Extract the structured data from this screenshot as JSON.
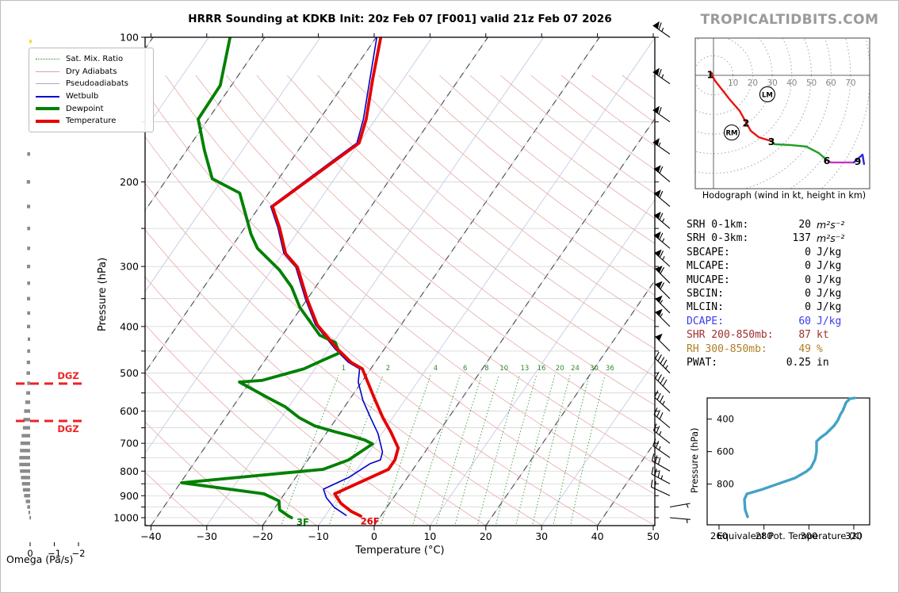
{
  "title": "HRRR Sounding at KDKB Init: 20z Feb 07 [F001] valid 21z Feb 07 2026",
  "logo": "TROPICALTIDBITS.COM",
  "legend": {
    "items": [
      {
        "label": "Sat. Mix. Ratio",
        "key": "mixratio"
      },
      {
        "label": "Dry Adiabats",
        "key": "dryadiabat"
      },
      {
        "label": "Pseudoadiabats",
        "key": "pseudoadiabat"
      },
      {
        "label": "Wetbulb",
        "key": "wetbulb"
      },
      {
        "label": "Dewpoint",
        "key": "dewpoint"
      },
      {
        "label": "Temperature",
        "key": "temperature"
      }
    ]
  },
  "chart_data": {
    "skewt": {
      "type": "line",
      "xlabel": "Temperature (°C)",
      "ylabel": "Pressure (hPa)",
      "x_ticks": [
        -40,
        -30,
        -20,
        -10,
        0,
        10,
        20,
        30,
        40,
        50
      ],
      "p_ticks": [
        100,
        200,
        300,
        400,
        500,
        600,
        700,
        800,
        900,
        1000
      ],
      "xlim": [
        -41,
        50.3
      ],
      "plim": [
        100,
        1040
      ],
      "mixing_ratio_values": [
        1,
        2,
        4,
        6,
        8,
        10,
        13,
        16,
        20,
        24,
        30,
        36
      ],
      "dgz_label": "DGZ",
      "dgz_levels_hpa": [
        526,
        629
      ],
      "surface_labels": [
        {
          "text": "26F",
          "color": "#e60000",
          "x_temp": -3.6,
          "p": 1005
        },
        {
          "text": "3F",
          "color": "#008000",
          "x_temp": -15.5,
          "p": 1010
        }
      ],
      "series": [
        {
          "name": "Temperature",
          "color": "#e60000",
          "points": [
            [
              100,
              -59.2
            ],
            [
              122,
              -55.5
            ],
            [
              148,
              -51.7
            ],
            [
              166,
              -50.0
            ],
            [
              176,
              -51.5
            ],
            [
              225,
              -57.7
            ],
            [
              249,
              -53.8
            ],
            [
              282,
              -49.5
            ],
            [
              301,
              -45.7
            ],
            [
              350,
              -40.1
            ],
            [
              397,
              -35.0
            ],
            [
              445,
              -28.5
            ],
            [
              475,
              -24.3
            ],
            [
              490,
              -21.5
            ],
            [
              563,
              -15.8
            ],
            [
              619,
              -11.8
            ],
            [
              663,
              -8.6
            ],
            [
              716,
              -5.3
            ],
            [
              758,
              -4.4
            ],
            [
              793,
              -4.4
            ],
            [
              892,
              -11.0
            ],
            [
              934,
              -8.7
            ],
            [
              970,
              -5.9
            ],
            [
              992,
              -3.6
            ]
          ]
        },
        {
          "name": "Dewpoint",
          "color": "#008000",
          "points": [
            [
              100,
              -86.2
            ],
            [
              126,
              -82.0
            ],
            [
              148,
              -81.8
            ],
            [
              172,
              -76.8
            ],
            [
              197,
              -71.9
            ],
            [
              211,
              -65.2
            ],
            [
              257,
              -58.1
            ],
            [
              275,
              -55.2
            ],
            [
              305,
              -48.6
            ],
            [
              331,
              -44.3
            ],
            [
              365,
              -40.3
            ],
            [
              417,
              -33.3
            ],
            [
              432,
              -29.6
            ],
            [
              454,
              -27.6
            ],
            [
              468,
              -29.4
            ],
            [
              490,
              -32.0
            ],
            [
              518,
              -38.1
            ],
            [
              522,
              -41.9
            ],
            [
              563,
              -34.8
            ],
            [
              588,
              -30.6
            ],
            [
              619,
              -26.8
            ],
            [
              644,
              -23.0
            ],
            [
              663,
              -18.5
            ],
            [
              676,
              -15.2
            ],
            [
              689,
              -12.3
            ],
            [
              702,
              -10.4
            ],
            [
              758,
              -12.7
            ],
            [
              793,
              -16.1
            ],
            [
              846,
              -39.8
            ],
            [
              892,
              -23.7
            ],
            [
              923,
              -20.1
            ],
            [
              963,
              -18.9
            ],
            [
              989,
              -16.8
            ],
            [
              1000,
              -15.8
            ]
          ]
        },
        {
          "name": "Wetbulb",
          "color": "#0000cd",
          "points": [
            [
              100,
              -59.9
            ],
            [
              122,
              -56.0
            ],
            [
              148,
              -52.2
            ],
            [
              166,
              -50.4
            ],
            [
              176,
              -51.9
            ],
            [
              225,
              -58.0
            ],
            [
              249,
              -54.1
            ],
            [
              282,
              -49.8
            ],
            [
              301,
              -46.0
            ],
            [
              350,
              -40.4
            ],
            [
              397,
              -35.3
            ],
            [
              445,
              -28.9
            ],
            [
              475,
              -24.8
            ],
            [
              490,
              -22.0
            ],
            [
              522,
              -20.6
            ],
            [
              570,
              -17.5
            ],
            [
              619,
              -14.0
            ],
            [
              668,
              -10.7
            ],
            [
              730,
              -7.6
            ],
            [
              758,
              -7.0
            ],
            [
              772,
              -8.4
            ],
            [
              824,
              -10.5
            ],
            [
              872,
              -13.6
            ],
            [
              909,
              -12.0
            ],
            [
              952,
              -9.4
            ],
            [
              989,
              -6.3
            ]
          ]
        }
      ]
    },
    "wind_barbs": {
      "units": "kt",
      "levels": [
        [
          100,
          65,
          305
        ],
        [
          125,
          65,
          305
        ],
        [
          150,
          60,
          305
        ],
        [
          175,
          55,
          305
        ],
        [
          200,
          60,
          310
        ],
        [
          225,
          60,
          310
        ],
        [
          250,
          65,
          310
        ],
        [
          275,
          65,
          310
        ],
        [
          300,
          65,
          312
        ],
        [
          325,
          60,
          315
        ],
        [
          350,
          60,
          315
        ],
        [
          375,
          55,
          315
        ],
        [
          400,
          55,
          315
        ],
        [
          450,
          50,
          315
        ],
        [
          500,
          45,
          315
        ],
        [
          550,
          40,
          315
        ],
        [
          600,
          35,
          312
        ],
        [
          650,
          30,
          310
        ],
        [
          700,
          25,
          308
        ],
        [
          750,
          25,
          305
        ],
        [
          800,
          30,
          300
        ],
        [
          850,
          35,
          298
        ],
        [
          900,
          20,
          295
        ],
        [
          950,
          5,
          80
        ],
        [
          1000,
          5,
          95
        ]
      ]
    },
    "omega": {
      "type": "bar",
      "xlabel": "Omega (Pa/s)",
      "x_ticks": [
        0,
        -1,
        -2
      ],
      "positive_color": "#f0e13a",
      "negative_color": "#8a8a8a",
      "points": [
        [
          102,
          0.1
        ],
        [
          127,
          0.07
        ],
        [
          150,
          -0.03
        ],
        [
          175,
          -0.12
        ],
        [
          200,
          -0.14
        ],
        [
          225,
          -0.13
        ],
        [
          250,
          -0.12
        ],
        [
          275,
          -0.12
        ],
        [
          300,
          -0.13
        ],
        [
          325,
          -0.12
        ],
        [
          350,
          -0.13
        ],
        [
          375,
          -0.12
        ],
        [
          400,
          -0.13
        ],
        [
          425,
          -0.1
        ],
        [
          450,
          -0.12
        ],
        [
          475,
          -0.14
        ],
        [
          500,
          -0.15
        ],
        [
          525,
          -0.12
        ],
        [
          550,
          -0.16
        ],
        [
          575,
          -0.2
        ],
        [
          600,
          -0.25
        ],
        [
          625,
          -0.28
        ],
        [
          650,
          -0.3
        ],
        [
          675,
          -0.35
        ],
        [
          700,
          -0.4
        ],
        [
          725,
          -0.42
        ],
        [
          750,
          -0.45
        ],
        [
          775,
          -0.45
        ],
        [
          800,
          -0.42
        ],
        [
          825,
          -0.38
        ],
        [
          850,
          -0.34
        ],
        [
          875,
          -0.3
        ],
        [
          900,
          -0.25
        ],
        [
          925,
          -0.18
        ],
        [
          950,
          -0.12
        ],
        [
          975,
          -0.07
        ],
        [
          1000,
          -0.03
        ]
      ]
    },
    "hodograph": {
      "type": "line",
      "caption": "Hodograph (wind in kt, height in km)",
      "ring_spacing_kt": 10,
      "ring_labels": [
        10,
        20,
        30,
        40,
        50,
        60,
        70
      ],
      "segments": [
        {
          "color": "#e8150d",
          "points": [
            [
              -1.2,
              0.8
            ],
            [
              0.8,
              -2.8
            ],
            [
              8.1,
              -12.1
            ],
            [
              13.4,
              -18.2
            ],
            [
              19.0,
              -28.3
            ],
            [
              23.1,
              -31.6
            ],
            [
              29.6,
              -33.6
            ]
          ]
        },
        {
          "color": "#1f9e20",
          "points": [
            [
              29.6,
              -33.6
            ],
            [
              31.2,
              -35.2
            ],
            [
              39.3,
              -35.6
            ],
            [
              47.4,
              -36.4
            ],
            [
              53.8,
              -39.7
            ],
            [
              57.9,
              -43.3
            ]
          ]
        },
        {
          "color": "#c137c1",
          "points": [
            [
              57.9,
              -43.3
            ],
            [
              59.9,
              -44.5
            ],
            [
              71.7,
              -44.5
            ]
          ]
        },
        {
          "color": "#2a2ae0",
          "points": [
            [
              71.7,
              -44.5
            ],
            [
              76.1,
              -40.5
            ],
            [
              76.9,
              -45.3
            ]
          ]
        }
      ],
      "height_labels": [
        {
          "t": "1",
          "u": -1.7,
          "v": 0.5
        },
        {
          "t": "2",
          "u": 16.6,
          "v": -24.3
        },
        {
          "t": "3",
          "u": 29.6,
          "v": -33.8
        },
        {
          "t": "6",
          "u": 57.9,
          "v": -43.5
        },
        {
          "t": "9",
          "u": 73.7,
          "v": -43.9
        }
      ],
      "storm_markers": [
        {
          "t": "LM",
          "u": 27.5,
          "v": -9.7
        },
        {
          "t": "RM",
          "u": 9.3,
          "v": -29.2
        }
      ]
    },
    "theta_e": {
      "type": "line",
      "xlabel": "Equivalent Pot. Temperature (K)",
      "ylabel": "Pressure (hPa)",
      "x_ticks": [
        260,
        280,
        300,
        320
      ],
      "p_ticks": [
        400,
        600,
        800
      ],
      "color": "#43a2c4",
      "points": [
        [
          270,
          320.4
        ],
        [
          275,
          318.2
        ],
        [
          299,
          316.5
        ],
        [
          324,
          315.8
        ],
        [
          348,
          315.1
        ],
        [
          372,
          314.0
        ],
        [
          407,
          312.9
        ],
        [
          441,
          311.2
        ],
        [
          465,
          309.4
        ],
        [
          489,
          307.7
        ],
        [
          514,
          305.2
        ],
        [
          538,
          303.4
        ],
        [
          601,
          303.4
        ],
        [
          650,
          302.7
        ],
        [
          699,
          300.9
        ],
        [
          723,
          298.8
        ],
        [
          762,
          293.9
        ],
        [
          796,
          286.8
        ],
        [
          835,
          278.7
        ],
        [
          860,
          272.4
        ],
        [
          894,
          271.3
        ],
        [
          957,
          271.6
        ],
        [
          1001,
          272.7
        ]
      ]
    },
    "stats": {
      "rows": [
        {
          "label": "SRH 0-1km:",
          "value": "20",
          "unit": "m²s⁻²",
          "color": "#000000"
        },
        {
          "label": "SRH 0-3km:",
          "value": "137",
          "unit": "m²s⁻²",
          "color": "#000000"
        },
        {
          "label": "SBCAPE:",
          "value": "0",
          "unit": "J/kg",
          "color": "#000000"
        },
        {
          "label": "MLCAPE:",
          "value": "0",
          "unit": "J/kg",
          "color": "#000000"
        },
        {
          "label": "MUCAPE:",
          "value": "0",
          "unit": "J/kg",
          "color": "#000000"
        },
        {
          "label": "SBCIN:",
          "value": "0",
          "unit": "J/kg",
          "color": "#000000"
        },
        {
          "label": "MLCIN:",
          "value": "0",
          "unit": "J/kg",
          "color": "#000000"
        },
        {
          "label": "DCAPE:",
          "value": "60",
          "unit": "J/kg",
          "color": "#3b3bee"
        },
        {
          "label": "SHR 200-850mb:",
          "value": "87",
          "unit": "kt",
          "color": "#a03030"
        },
        {
          "label": "RH 300-850mb:",
          "value": "49",
          "unit": "%",
          "color": "#b08025"
        },
        {
          "label": "PWAT:",
          "value": "0.25",
          "unit": "in",
          "color": "#000000"
        }
      ]
    }
  }
}
